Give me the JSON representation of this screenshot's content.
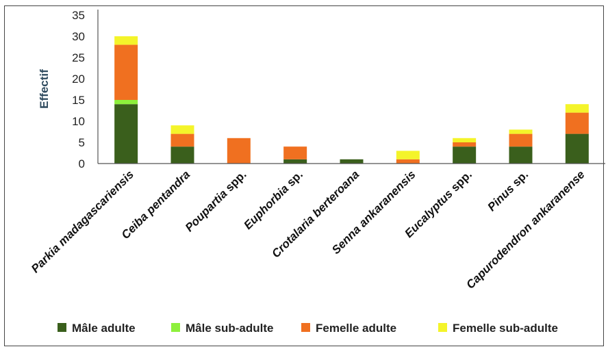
{
  "chart_data": {
    "type": "bar",
    "stacked": true,
    "ylabel": "Effectif",
    "ylim": [
      0,
      35
    ],
    "yticks": [
      0,
      5,
      10,
      15,
      20,
      25,
      30,
      35
    ],
    "grid": false,
    "legend_position": "bottom",
    "categories": [
      {
        "italic": "Parkia madagascariensis",
        "plain": ""
      },
      {
        "italic": "Ceiba pentandra",
        "plain": ""
      },
      {
        "italic": "Poupartia",
        "plain": " spp."
      },
      {
        "italic": "Euphorbia",
        "plain": " sp."
      },
      {
        "italic": "Crotalaria berteroana",
        "plain": ""
      },
      {
        "italic": "Senna ankaranensis",
        "plain": ""
      },
      {
        "italic": "Eucalyptus",
        "plain": " spp."
      },
      {
        "italic": "Pinus",
        "plain": " sp."
      },
      {
        "italic": "Capurodendron ankaranense",
        "plain": ""
      }
    ],
    "series": [
      {
        "name": "Mâle adulte",
        "color": "#3a5f1c",
        "values": [
          14,
          4,
          0,
          1,
          1,
          0,
          4,
          4,
          7
        ]
      },
      {
        "name": "Mâle sub-adulte",
        "color": "#8ef03c",
        "values": [
          1,
          0,
          0,
          0,
          0,
          0,
          0,
          0,
          0
        ]
      },
      {
        "name": "Femelle adulte",
        "color": "#f07020",
        "values": [
          13,
          3,
          6,
          3,
          0,
          1,
          1,
          3,
          5
        ]
      },
      {
        "name": "Femelle sub-adulte",
        "color": "#f4f42a",
        "values": [
          2,
          2,
          0,
          0,
          0,
          2,
          1,
          1,
          2
        ]
      }
    ]
  }
}
